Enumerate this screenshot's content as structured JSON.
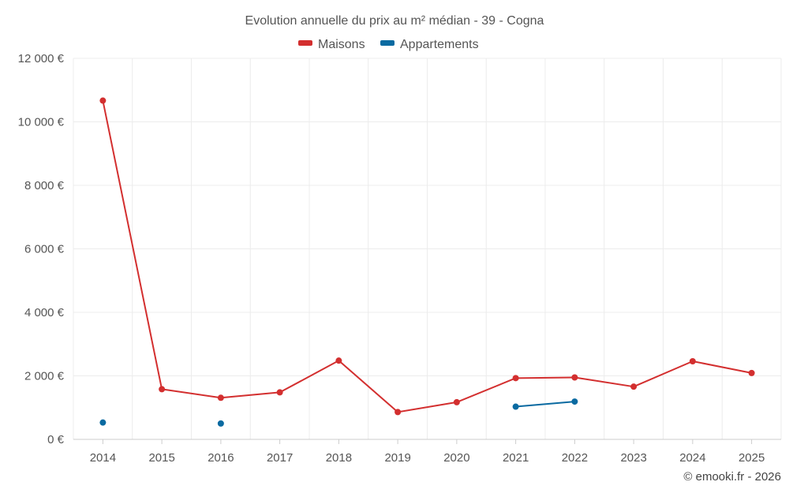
{
  "chart_data": {
    "type": "line",
    "title": "Evolution annuelle du prix au m² médian - 39 - Cogna",
    "categories": [
      "2014",
      "2015",
      "2016",
      "2017",
      "2018",
      "2019",
      "2020",
      "2021",
      "2022",
      "2023",
      "2024",
      "2025"
    ],
    "series": [
      {
        "name": "Maisons",
        "color": "#d32f2f",
        "values": [
          10670,
          1580,
          1310,
          1480,
          2480,
          860,
          1170,
          1930,
          1950,
          1660,
          2460,
          2090
        ]
      },
      {
        "name": "Appartements",
        "color": "#0a6aa1",
        "values": [
          530,
          null,
          500,
          null,
          null,
          null,
          null,
          1030,
          1190,
          null,
          null,
          null
        ]
      }
    ],
    "ylim": [
      0,
      12000
    ],
    "yticks": [
      0,
      2000,
      4000,
      6000,
      8000,
      10000,
      12000
    ],
    "ytick_labels": [
      "0 €",
      "2 000 €",
      "4 000 €",
      "6 000 €",
      "8 000 €",
      "10 000 €",
      "12 000 €"
    ],
    "xlabel": "",
    "ylabel": "",
    "grid": true,
    "legend_position": "top-center"
  },
  "credit": "© emooki.fr - 2026"
}
